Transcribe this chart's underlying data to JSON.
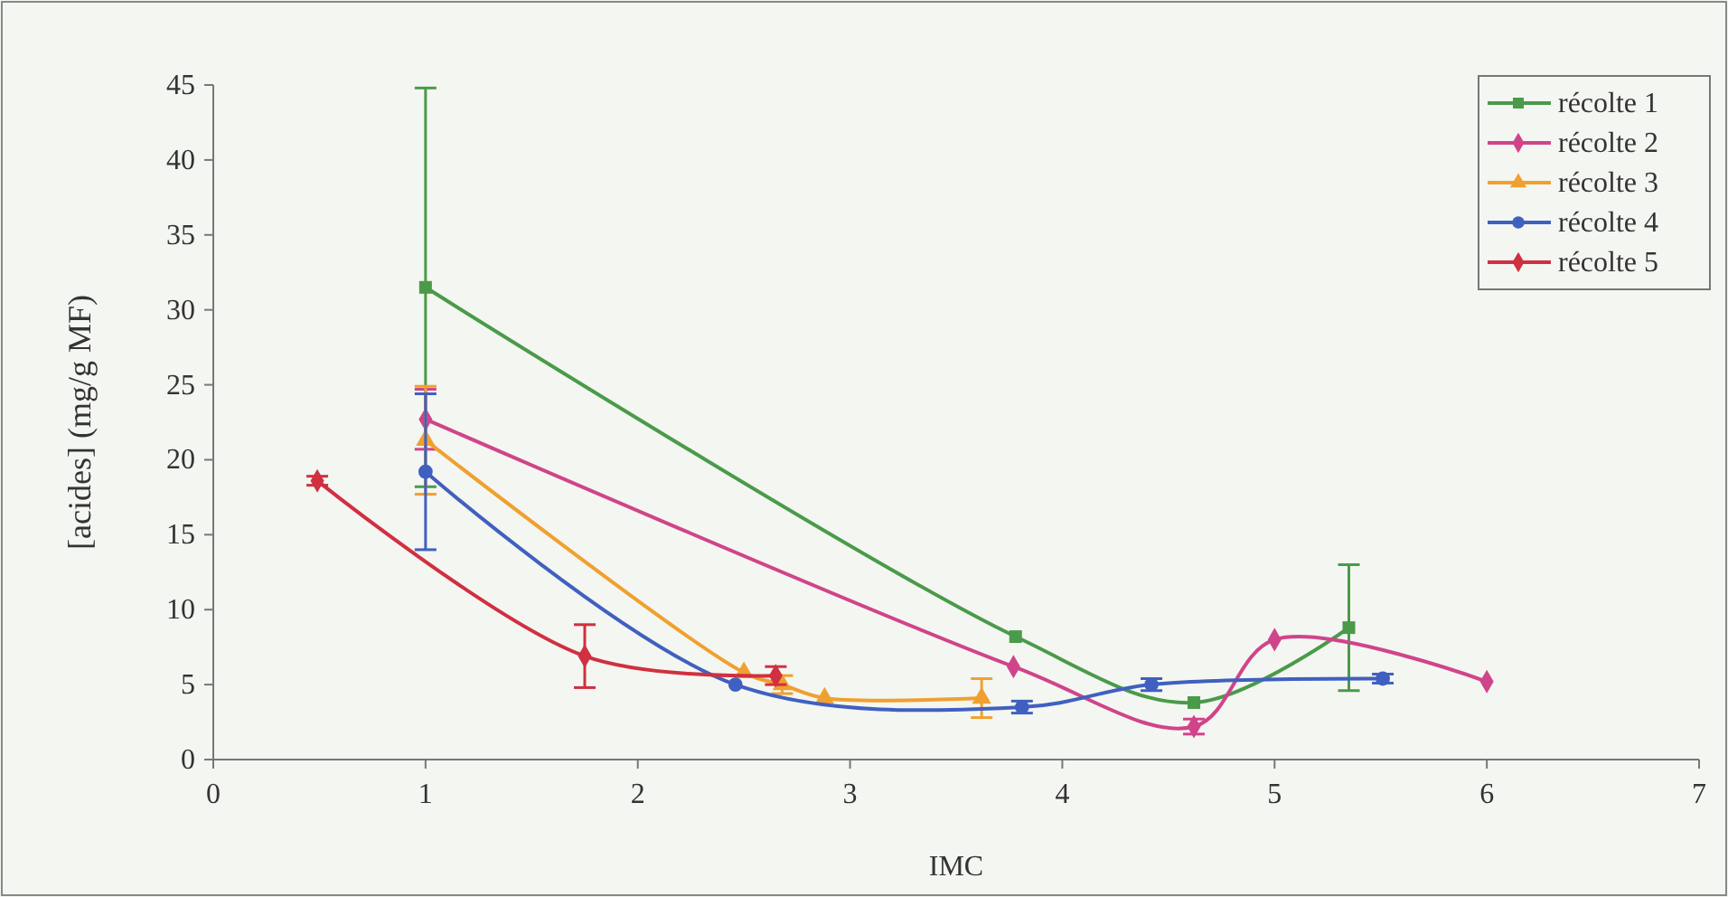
{
  "chart_data": {
    "type": "line",
    "xlabel": "IMC",
    "ylabel": "[acides] (mg/g MF)",
    "xlim": [
      0,
      7
    ],
    "xticks": [
      0,
      1,
      2,
      3,
      4,
      5,
      6,
      7
    ],
    "ylim": [
      0,
      45
    ],
    "yticks": [
      0,
      5,
      10,
      15,
      20,
      25,
      30,
      35,
      40,
      45
    ],
    "grid": false,
    "legend": "top right",
    "line_style": "solid",
    "series": [
      {
        "name": "récolte 1",
        "color": "#4a9a4a",
        "marker": "square",
        "x": [
          1,
          3.78,
          4.62,
          5.35
        ],
        "values": [
          31.5,
          8.2,
          3.8,
          8.8
        ],
        "errors": [
          13.3,
          null,
          null,
          4.2
        ]
      },
      {
        "name": "récolte 2",
        "color": "#d0448a",
        "marker": "diamond",
        "x": [
          1,
          3.77,
          4.62,
          5,
          6
        ],
        "values": [
          22.7,
          6.2,
          2.2,
          8,
          5.2
        ],
        "errors": [
          2,
          null,
          0.5,
          null,
          null
        ]
      },
      {
        "name": "récolte 3",
        "color": "#f0a030",
        "marker": "triangle",
        "x": [
          1,
          2.5,
          2.68,
          2.88,
          3.62
        ],
        "values": [
          21.3,
          5.8,
          5,
          4.1,
          4.1
        ],
        "errors": [
          3.6,
          null,
          0.6,
          null,
          1.3
        ]
      },
      {
        "name": "récolte 4",
        "color": "#4060c0",
        "marker": "circle",
        "x": [
          1,
          2.46,
          3.81,
          4.42,
          5.51
        ],
        "values": [
          19.2,
          5,
          3.5,
          5,
          5.4
        ],
        "errors": [
          5.2,
          null,
          0.4,
          0.4,
          0.3
        ]
      },
      {
        "name": "récolte 5",
        "color": "#d03040",
        "marker": "diamond",
        "x": [
          0.49,
          1.75,
          2.65
        ],
        "values": [
          18.6,
          6.9,
          5.6
        ],
        "errors": [
          0.3,
          2.1,
          0.6
        ]
      }
    ]
  }
}
